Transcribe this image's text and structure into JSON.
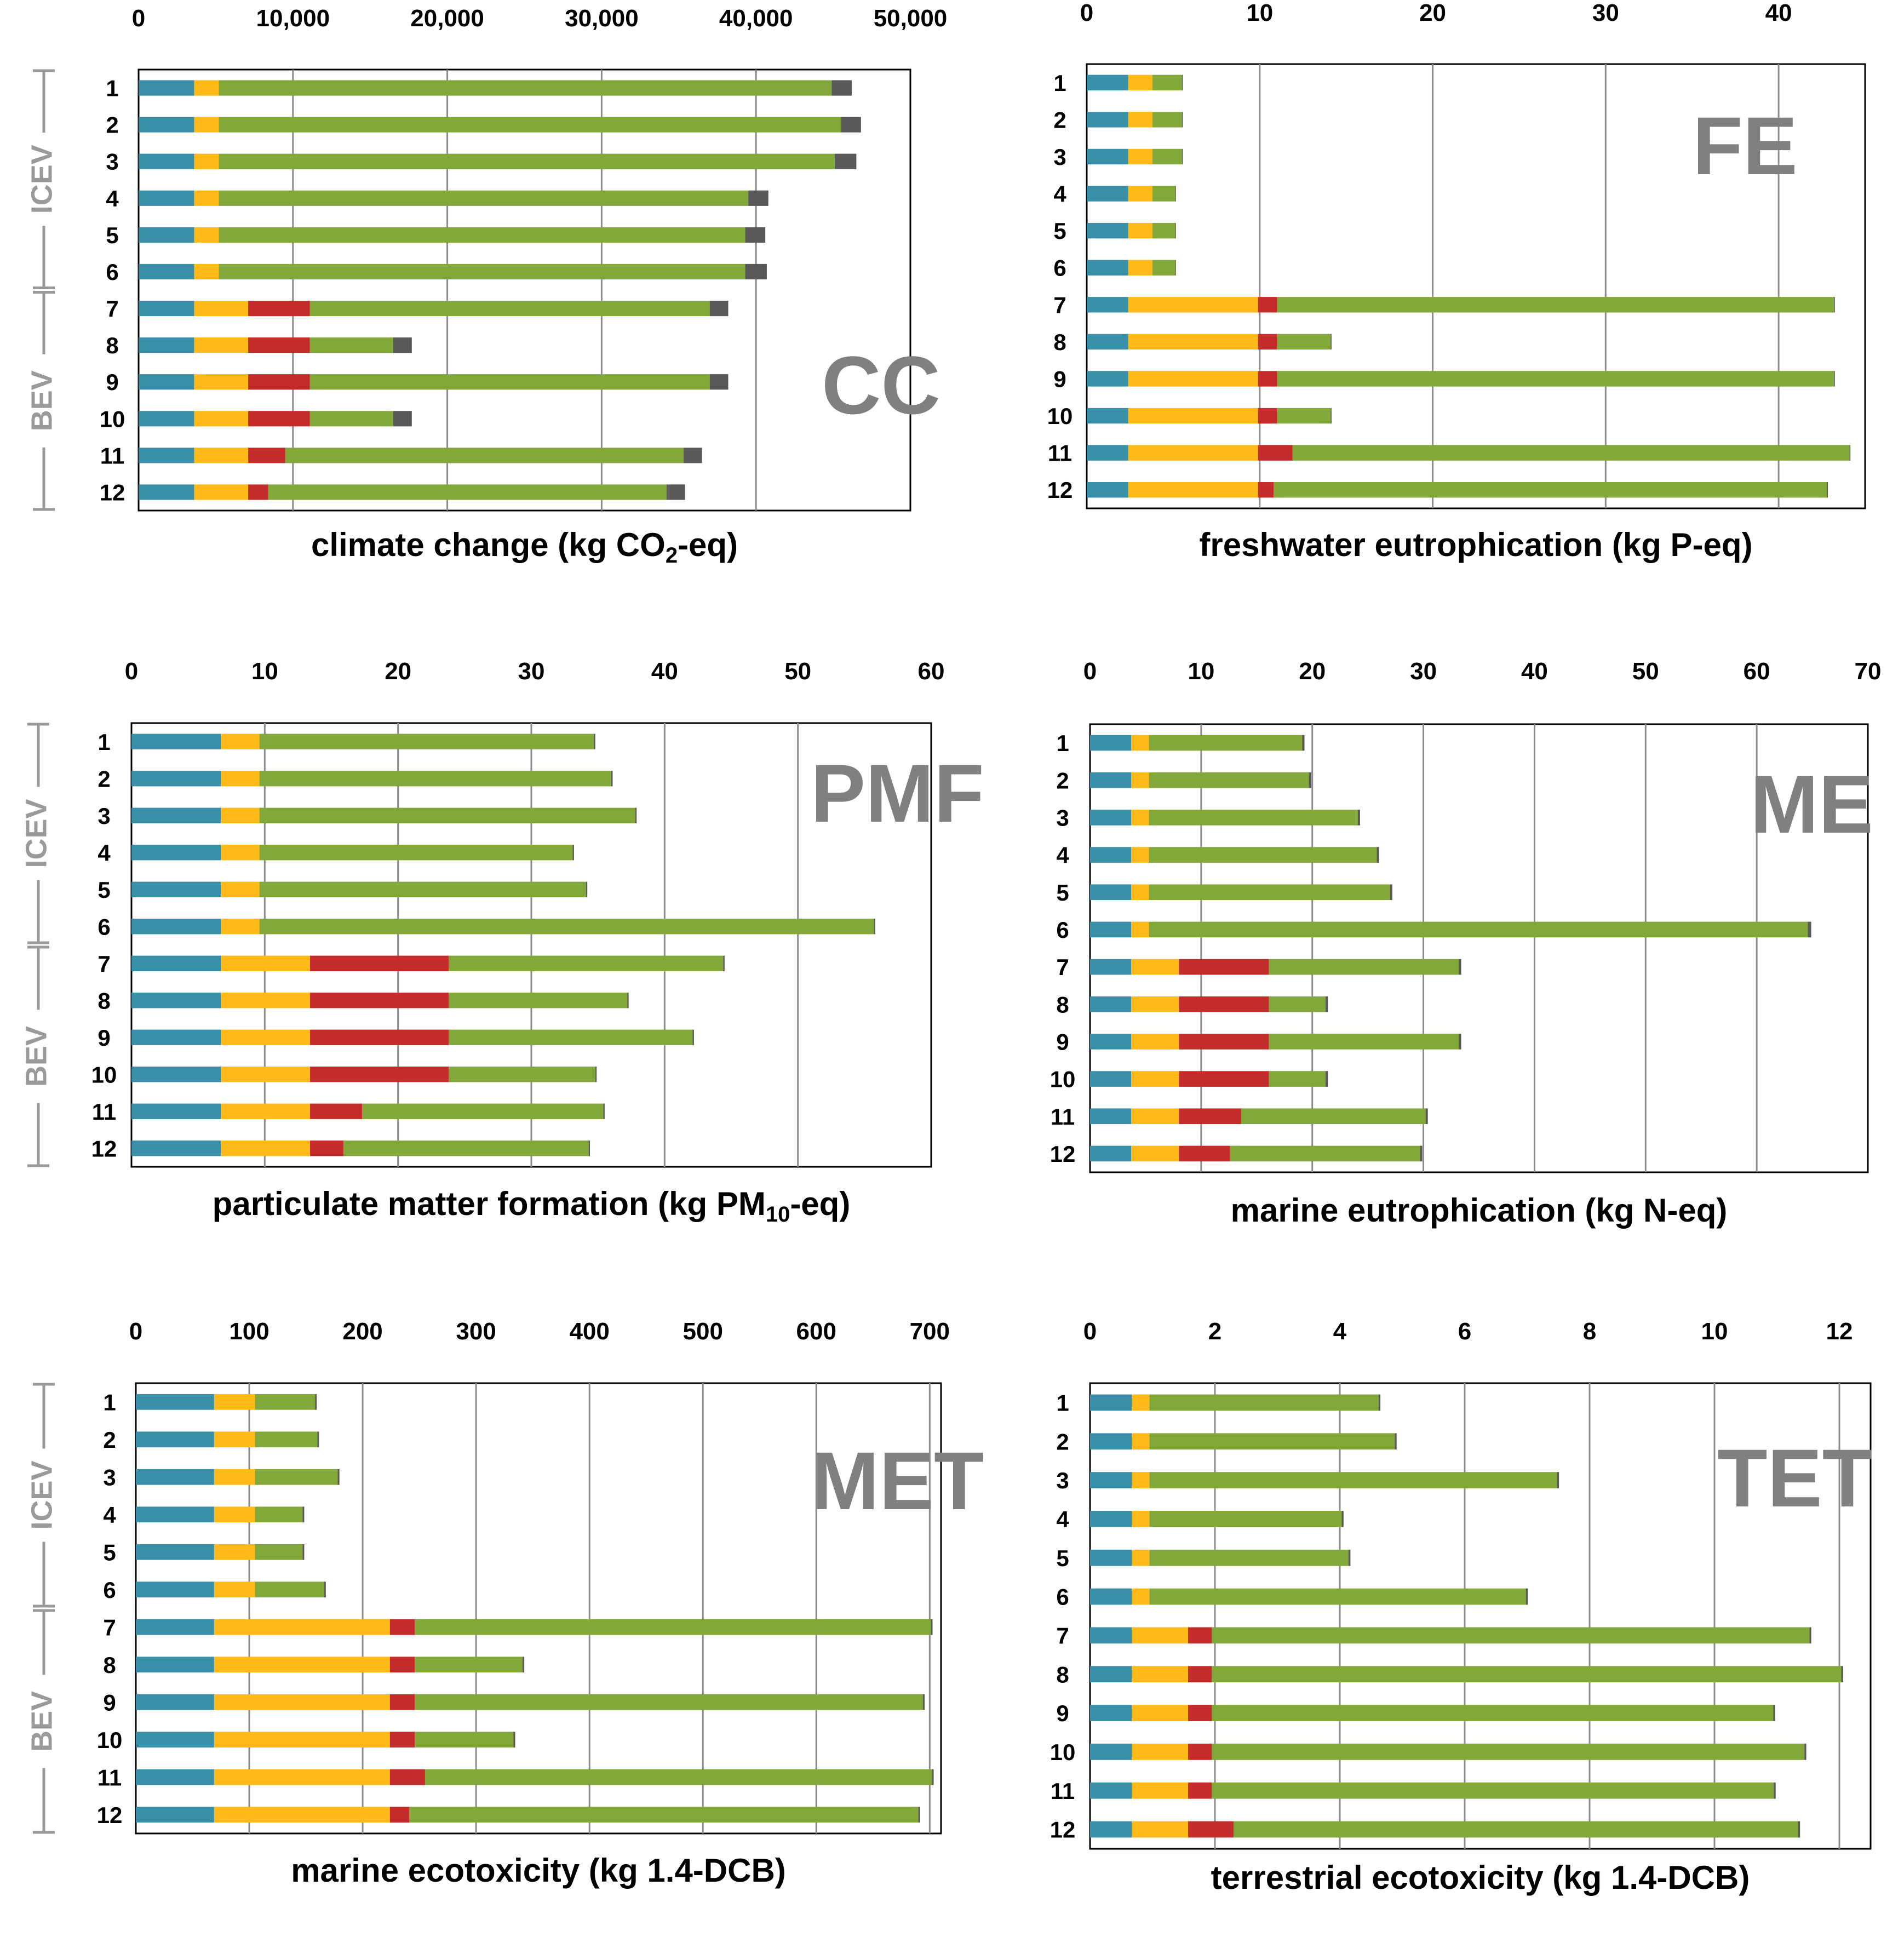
{
  "figure": {
    "colors": {
      "seg0": "#3A8FA8",
      "seg1": "#FFBA1A",
      "seg2": "#C42B2B",
      "seg3": "#82A83A",
      "seg4": "#595959",
      "grid": "#8C8C8C",
      "axis_text": "#000000",
      "watermark": "#808080",
      "group_label": "#9A9A9A"
    }
  },
  "chart_data": [
    {
      "type": "bar",
      "stacked": true,
      "orientation": "horizontal",
      "abbr": "CC",
      "title": "climate change (kg CO2-eq)",
      "title_main": "climate change (kg CO",
      "title_sub": "2",
      "title_end": "-eq)",
      "xlim": [
        0,
        50000
      ],
      "ticks": [
        0,
        10000,
        20000,
        30000,
        40000,
        50000
      ],
      "tick_labels": [
        "0",
        "10,000",
        "20,000",
        "30,000",
        "40,000",
        "50,000"
      ],
      "categories": [
        "1",
        "2",
        "3",
        "4",
        "5",
        "6",
        "7",
        "8",
        "9",
        "10",
        "11",
        "12"
      ],
      "group_labels": [
        "ICEV",
        "BEV"
      ],
      "series": [
        {
          "name": "seg1",
          "values": [
            3600,
            3600,
            3600,
            3600,
            3600,
            3600,
            3600,
            3600,
            3600,
            3600,
            3600,
            3600
          ]
        },
        {
          "name": "seg2",
          "values": [
            1600,
            1600,
            1600,
            1600,
            1600,
            1600,
            3500,
            3500,
            3500,
            3500,
            3500,
            3500
          ]
        },
        {
          "name": "seg3",
          "values": [
            0,
            0,
            0,
            0,
            0,
            0,
            4000,
            4000,
            4000,
            4000,
            2400,
            1300
          ]
        },
        {
          "name": "seg4",
          "values": [
            39700,
            40300,
            39900,
            34300,
            34100,
            34100,
            25900,
            5400,
            25900,
            5400,
            25800,
            25800
          ]
        },
        {
          "name": "seg5",
          "values": [
            1300,
            1300,
            1400,
            1300,
            1300,
            1400,
            1200,
            1200,
            1200,
            1200,
            1200,
            1200
          ]
        }
      ]
    },
    {
      "type": "bar",
      "stacked": true,
      "orientation": "horizontal",
      "abbr": "FE",
      "title": "freshwater eutrophication (kg P-eq)",
      "title_main": "freshwater eutrophication (kg P-eq)",
      "title_sub": "",
      "title_end": "",
      "xlim": [
        0,
        45
      ],
      "ticks": [
        0,
        10,
        20,
        30,
        40
      ],
      "tick_labels": [
        "0",
        "10",
        "20",
        "30",
        "40"
      ],
      "categories": [
        "1",
        "2",
        "3",
        "4",
        "5",
        "6",
        "7",
        "8",
        "9",
        "10",
        "11",
        "12"
      ],
      "group_labels": [
        "ICEV",
        "BEV"
      ],
      "series": [
        {
          "name": "seg1",
          "values": [
            2.4,
            2.4,
            2.4,
            2.4,
            2.4,
            2.4,
            2.4,
            2.4,
            2.4,
            2.4,
            2.4,
            2.4
          ]
        },
        {
          "name": "seg2",
          "values": [
            1.4,
            1.4,
            1.4,
            1.4,
            1.4,
            1.4,
            7.5,
            7.5,
            7.5,
            7.5,
            7.5,
            7.5
          ]
        },
        {
          "name": "seg3",
          "values": [
            0,
            0,
            0,
            0,
            0,
            0,
            1.1,
            1.1,
            1.1,
            1.1,
            2.0,
            0.9
          ]
        },
        {
          "name": "seg4",
          "values": [
            1.7,
            1.7,
            1.7,
            1.3,
            1.3,
            1.3,
            32.2,
            3.1,
            32.2,
            3.1,
            32.2,
            32.0
          ]
        },
        {
          "name": "seg5",
          "values": [
            0.05,
            0.05,
            0.05,
            0.05,
            0.05,
            0.05,
            0.05,
            0.05,
            0.05,
            0.05,
            0.05,
            0.05
          ]
        }
      ]
    },
    {
      "type": "bar",
      "stacked": true,
      "orientation": "horizontal",
      "abbr": "PMF",
      "title": "particulate matter formation (kg PM10-eq)",
      "title_main": "particulate matter formation (kg PM",
      "title_sub": "10",
      "title_end": "-eq)",
      "xlim": [
        0,
        60
      ],
      "ticks": [
        0,
        10,
        20,
        30,
        40,
        50,
        60
      ],
      "tick_labels": [
        "0",
        "10",
        "20",
        "30",
        "40",
        "50",
        "60"
      ],
      "categories": [
        "1",
        "2",
        "3",
        "4",
        "5",
        "6",
        "7",
        "8",
        "9",
        "10",
        "11",
        "12"
      ],
      "group_labels": [
        "ICEV",
        "BEV"
      ],
      "series": [
        {
          "name": "seg1",
          "values": [
            6.7,
            6.7,
            6.7,
            6.7,
            6.7,
            6.7,
            6.7,
            6.7,
            6.7,
            6.7,
            6.7,
            6.7
          ]
        },
        {
          "name": "seg2",
          "values": [
            2.9,
            2.9,
            2.9,
            2.9,
            2.9,
            2.9,
            6.7,
            6.7,
            6.7,
            6.7,
            6.7,
            6.7
          ]
        },
        {
          "name": "seg3",
          "values": [
            0,
            0,
            0,
            0,
            0,
            0,
            10.4,
            10.4,
            10.4,
            10.4,
            3.9,
            2.5
          ]
        },
        {
          "name": "seg4",
          "values": [
            25.1,
            26.4,
            28.2,
            23.5,
            24.5,
            46.1,
            20.6,
            13.4,
            18.3,
            11.0,
            18.1,
            18.4
          ]
        },
        {
          "name": "seg5",
          "values": [
            0.1,
            0.1,
            0.1,
            0.1,
            0.1,
            0.1,
            0.1,
            0.1,
            0.1,
            0.1,
            0.1,
            0.1
          ]
        }
      ]
    },
    {
      "type": "bar",
      "stacked": true,
      "orientation": "horizontal",
      "abbr": "ME",
      "title": "marine eutrophication (kg N-eq)",
      "title_main": "marine eutrophication (kg N-eq)",
      "title_sub": "",
      "title_end": "",
      "xlim": [
        0,
        70
      ],
      "ticks": [
        0,
        10,
        20,
        30,
        40,
        50,
        60,
        70
      ],
      "tick_labels": [
        "0",
        "10",
        "20",
        "30",
        "40",
        "50",
        "60",
        "70"
      ],
      "categories": [
        "1",
        "2",
        "3",
        "4",
        "5",
        "6",
        "7",
        "8",
        "9",
        "10",
        "11",
        "12"
      ],
      "group_labels": [
        "ICEV",
        "BEV"
      ],
      "series": [
        {
          "name": "seg1",
          "values": [
            3.7,
            3.7,
            3.7,
            3.7,
            3.7,
            3.7,
            3.7,
            3.7,
            3.7,
            3.7,
            3.7,
            3.7
          ]
        },
        {
          "name": "seg2",
          "values": [
            1.6,
            1.6,
            1.6,
            1.6,
            1.6,
            1.6,
            4.3,
            4.3,
            4.3,
            4.3,
            4.3,
            4.3
          ]
        },
        {
          "name": "seg3",
          "values": [
            0,
            0,
            0,
            0,
            0,
            0,
            8.1,
            8.1,
            8.1,
            8.1,
            5.6,
            4.6
          ]
        },
        {
          "name": "seg4",
          "values": [
            13.8,
            14.4,
            18.8,
            20.5,
            21.7,
            59.3,
            17.1,
            5.1,
            17.1,
            5.1,
            16.6,
            17.1
          ]
        },
        {
          "name": "seg5",
          "values": [
            0.2,
            0.2,
            0.2,
            0.2,
            0.2,
            0.3,
            0.2,
            0.2,
            0.2,
            0.2,
            0.2,
            0.2
          ]
        }
      ]
    },
    {
      "type": "bar",
      "stacked": true,
      "orientation": "horizontal",
      "abbr": "MET",
      "title": "marine ecotoxicity (kg 1.4-DCB)",
      "title_main": "marine ecotoxicity (kg 1.4-DCB)",
      "title_sub": "",
      "title_end": "",
      "xlim": [
        0,
        710
      ],
      "ticks": [
        0,
        100,
        200,
        300,
        400,
        500,
        600,
        700
      ],
      "tick_labels": [
        "0",
        "100",
        "200",
        "300",
        "400",
        "500",
        "600",
        "700"
      ],
      "categories": [
        "1",
        "2",
        "3",
        "4",
        "5",
        "6",
        "7",
        "8",
        "9",
        "10",
        "11",
        "12"
      ],
      "group_labels": [
        "ICEV",
        "BEV"
      ],
      "series": [
        {
          "name": "seg1",
          "values": [
            69,
            69,
            69,
            69,
            69,
            69,
            69,
            69,
            69,
            69,
            69,
            69
          ]
        },
        {
          "name": "seg2",
          "values": [
            36,
            36,
            36,
            36,
            36,
            36,
            155,
            155,
            155,
            155,
            155,
            155
          ]
        },
        {
          "name": "seg3",
          "values": [
            0,
            0,
            0,
            0,
            0,
            0,
            22,
            22,
            22,
            22,
            31,
            17
          ]
        },
        {
          "name": "seg4",
          "values": [
            53,
            55,
            73,
            42,
            42,
            61,
            455,
            95,
            448,
            87,
            447,
            449
          ]
        },
        {
          "name": "seg5",
          "values": [
            1.5,
            1.5,
            1.5,
            1.5,
            1.5,
            1.5,
            1.5,
            1.5,
            1.5,
            1.5,
            1.5,
            1.5
          ]
        }
      ]
    },
    {
      "type": "bar",
      "stacked": true,
      "orientation": "horizontal",
      "abbr": "TET",
      "title": "terrestrial ecotoxicity (kg 1.4-DCB)",
      "title_main": "terrestrial ecotoxicity (kg 1.4-DCB)",
      "title_sub": "",
      "title_end": "",
      "xlim": [
        0,
        12.5
      ],
      "ticks": [
        0,
        2,
        4,
        6,
        8,
        10,
        12
      ],
      "tick_labels": [
        "0",
        "2",
        "4",
        "6",
        "8",
        "10",
        "12"
      ],
      "categories": [
        "1",
        "2",
        "3",
        "4",
        "5",
        "6",
        "7",
        "8",
        "9",
        "10",
        "11",
        "12"
      ],
      "group_labels": [
        "ICEV",
        "BEV"
      ],
      "series": [
        {
          "name": "seg1",
          "values": [
            0.67,
            0.67,
            0.67,
            0.67,
            0.67,
            0.67,
            0.67,
            0.67,
            0.67,
            0.67,
            0.67,
            0.67
          ]
        },
        {
          "name": "seg2",
          "values": [
            0.28,
            0.28,
            0.28,
            0.28,
            0.28,
            0.28,
            0.9,
            0.9,
            0.9,
            0.9,
            0.9,
            0.9
          ]
        },
        {
          "name": "seg3",
          "values": [
            0,
            0,
            0,
            0,
            0,
            0,
            0.38,
            0.38,
            0.38,
            0.38,
            0.38,
            0.73
          ]
        },
        {
          "name": "seg4",
          "values": [
            3.67,
            3.93,
            6.53,
            3.08,
            3.19,
            6.03,
            9.57,
            10.08,
            8.99,
            9.49,
            9.0,
            9.04
          ]
        },
        {
          "name": "seg5",
          "values": [
            0.03,
            0.03,
            0.03,
            0.03,
            0.03,
            0.03,
            0.03,
            0.03,
            0.03,
            0.03,
            0.03,
            0.03
          ]
        }
      ]
    }
  ]
}
